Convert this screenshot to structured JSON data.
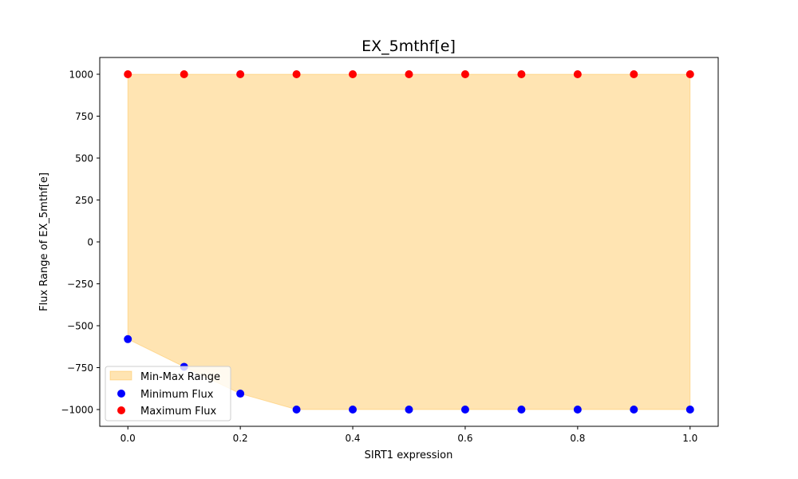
{
  "chart_data": {
    "type": "scatter",
    "title": "EX_5mthf[e]",
    "xlabel": "SIRT1 expression",
    "ylabel": "Flux Range of EX_5mthf[e]",
    "x": [
      0.0,
      0.1,
      0.2,
      0.3,
      0.4,
      0.5,
      0.6,
      0.7,
      0.8,
      0.9,
      1.0
    ],
    "xticks": [
      0.0,
      0.2,
      0.4,
      0.6,
      0.8,
      1.0
    ],
    "xtick_labels": [
      "0.0",
      "0.2",
      "0.4",
      "0.6",
      "0.8",
      "1.0"
    ],
    "yticks": [
      1000,
      750,
      500,
      250,
      0,
      -250,
      -500,
      -750,
      -1000
    ],
    "ytick_labels": [
      "1000",
      "750",
      "500",
      "250",
      "0",
      "−250",
      "−500",
      "−750",
      "−1000"
    ],
    "xlim": [
      -0.05,
      1.05
    ],
    "ylim": [
      -1100,
      1100
    ],
    "grid": false,
    "legend_position": "lower-left",
    "series": [
      {
        "name": "Min-Max Range",
        "kind": "fill_between",
        "color": "#ffa500",
        "opacity": 0.3
      },
      {
        "name": "Minimum Flux",
        "kind": "scatter",
        "color": "#0000ff",
        "values": [
          -580,
          -745,
          -905,
          -1000,
          -1000,
          -1000,
          -1000,
          -1000,
          -1000,
          -1000,
          -1000
        ]
      },
      {
        "name": "Maximum Flux",
        "kind": "scatter",
        "color": "#ff0000",
        "values": [
          1000,
          1000,
          1000,
          1000,
          1000,
          1000,
          1000,
          1000,
          1000,
          1000,
          1000
        ]
      }
    ]
  }
}
